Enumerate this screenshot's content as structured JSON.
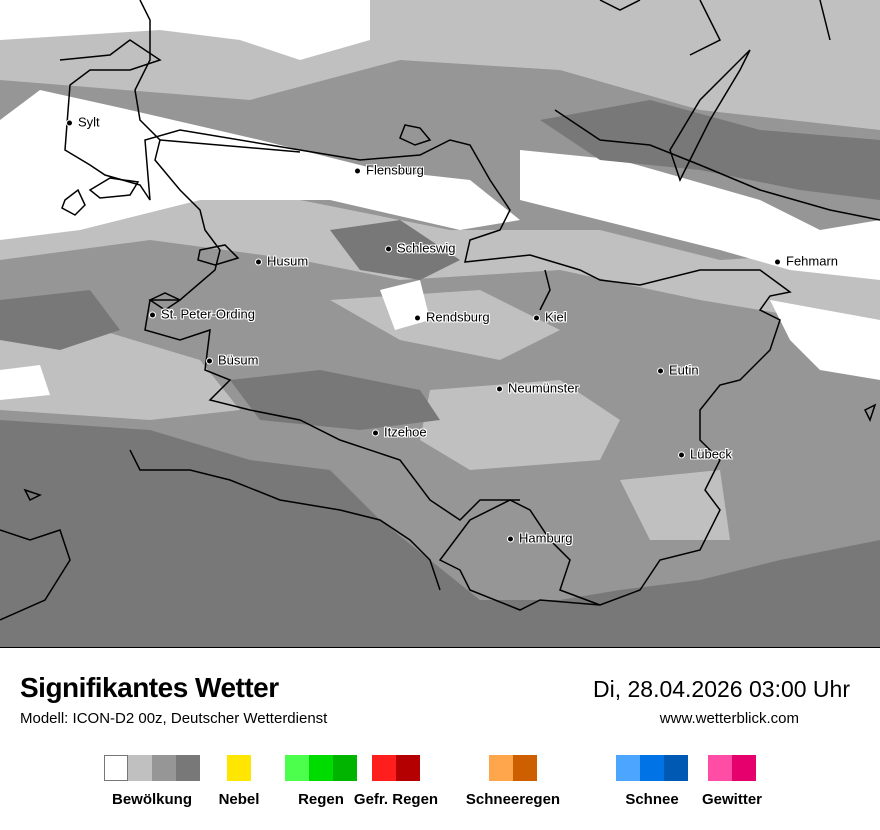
{
  "header": {
    "title": "Signifikantes Wetter",
    "model": "Modell: ICON-D2 00z, Deutscher Wetterdienst",
    "datetime": "Di, 28.04.2026 03:00 Uhr",
    "website": "www.wetterblick.com"
  },
  "cities": [
    "Sylt",
    "Flensburg",
    "Husum",
    "Schleswig",
    "St. Peter-Ording",
    "Rendsburg",
    "Kiel",
    "Büsum",
    "Neumünster",
    "Eutin",
    "Itzehoe",
    "Lübeck",
    "Hamburg",
    "Fehmarn"
  ],
  "legend": [
    {
      "label": "Bewölkung",
      "colors": [
        "#ffffff",
        "#c0c0c0",
        "#969696",
        "#787878"
      ]
    },
    {
      "label": "Nebel",
      "colors": [
        "#ffe600"
      ]
    },
    {
      "label": "Regen",
      "colors": [
        "#4cff4c",
        "#00dc00",
        "#00b400"
      ]
    },
    {
      "label": "Gefr. Regen",
      "colors": [
        "#ff1e1e",
        "#b40000"
      ]
    },
    {
      "label": "Schneeregen",
      "colors": [
        "#ffa54c",
        "#cd5f00"
      ]
    },
    {
      "label": "Schnee",
      "colors": [
        "#4ca5ff",
        "#0073e6",
        "#005ab4"
      ]
    },
    {
      "label": "Gewitter",
      "colors": [
        "#ff4ca5",
        "#e6006e"
      ]
    }
  ]
}
